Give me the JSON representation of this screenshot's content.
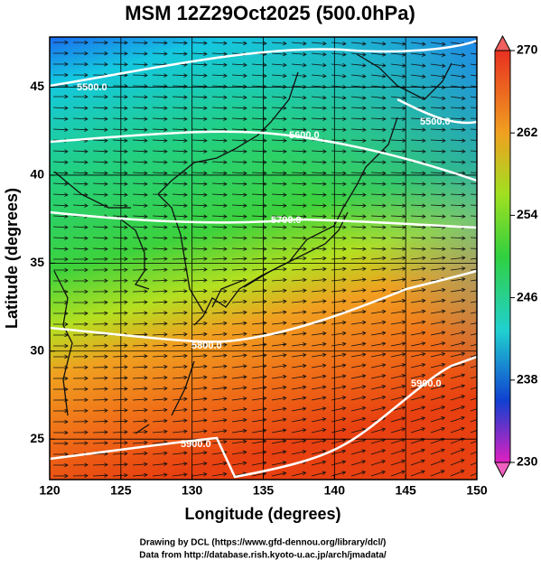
{
  "title": "MSM 12Z29Oct2025 (500.0hPa)",
  "x_axis": {
    "label": "Longitude (degrees)",
    "lim": [
      120,
      150
    ],
    "ticks": [
      120,
      125,
      130,
      135,
      140,
      145,
      150
    ]
  },
  "y_axis": {
    "label": "Latitude  (degrees)",
    "lim": [
      22.7,
      47.85
    ],
    "ticks": [
      25,
      30,
      35,
      40,
      45
    ]
  },
  "colorbar": {
    "lim": [
      230,
      270
    ],
    "ticks": [
      230,
      238,
      246,
      254,
      262,
      270
    ]
  },
  "contour_labels": [
    "5500.0",
    "5500.0",
    "5600.0",
    "5700.0",
    "5800.0",
    "5900.0",
    "5900.0"
  ],
  "footer": [
    "Drawing by DCL (https://www.gfd-dennou.org/library/dcl/)",
    "Data from http://database.rish.kyoto-u.ac.jp/arch/jmadata/"
  ]
}
